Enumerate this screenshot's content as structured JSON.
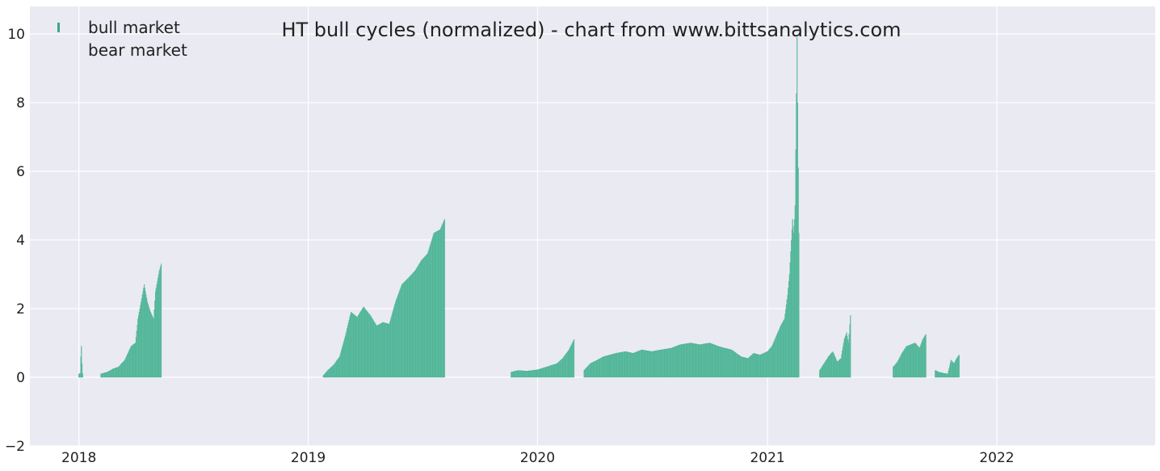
{
  "colors": {
    "background": "#eaeaf2",
    "grid": "#ffffff",
    "bull": "#66c2a5",
    "bull_edge": "#3aa88a",
    "bear": "#fc8d62"
  },
  "chart_data": {
    "type": "bar",
    "title": "HT bull cycles (normalized)  - chart from www.bittsanalytics.com",
    "xlabel": "",
    "ylabel": "",
    "xlim": [
      "2017-10-15",
      "2022-09-10"
    ],
    "ylim": [
      -2,
      10.8
    ],
    "grid": true,
    "legend_position": "top-left",
    "x_tick_labels": [
      "2018",
      "2019",
      "2020",
      "2021",
      "2022"
    ],
    "x_tick_dates": [
      "2018-01-01",
      "2019-01-01",
      "2020-01-01",
      "2021-01-01",
      "2022-01-01"
    ],
    "y_tick_labels": [
      "−2",
      "0",
      "2",
      "4",
      "6",
      "8",
      "10"
    ],
    "y_tick_values": [
      -2,
      0,
      2,
      4,
      6,
      8,
      10
    ],
    "series": [
      {
        "name": "bull market",
        "segments": [
          {
            "dates": [
              "2018-01-01",
              "2018-01-02",
              "2018-01-03",
              "2018-01-04",
              "2018-01-05",
              "2018-01-06",
              "2018-01-07"
            ],
            "values": [
              0.1,
              0.1,
              0.12,
              0.6,
              0.9,
              0.4,
              0.1
            ]
          },
          {
            "dates": [
              "2018-02-05",
              "2018-02-15",
              "2018-02-25",
              "2018-03-05",
              "2018-03-15",
              "2018-03-25",
              "2018-04-01",
              "2018-04-05",
              "2018-04-10",
              "2018-04-15",
              "2018-04-20",
              "2018-04-25",
              "2018-04-30",
              "2018-05-03",
              "2018-05-06",
              "2018-05-09",
              "2018-05-12"
            ],
            "values": [
              0.1,
              0.15,
              0.25,
              0.3,
              0.5,
              0.9,
              1.0,
              1.7,
              2.2,
              2.7,
              2.2,
              1.9,
              1.7,
              2.5,
              2.8,
              3.1,
              3.3
            ]
          },
          {
            "dates": [
              "2019-01-25",
              "2019-02-01",
              "2019-02-10",
              "2019-02-20",
              "2019-03-01",
              "2019-03-10",
              "2019-03-20",
              "2019-03-30",
              "2019-04-10",
              "2019-04-20",
              "2019-04-30",
              "2019-05-10",
              "2019-05-20",
              "2019-05-30",
              "2019-06-10",
              "2019-06-20",
              "2019-06-30",
              "2019-07-10",
              "2019-07-20",
              "2019-07-30",
              "2019-08-06"
            ],
            "values": [
              0.05,
              0.2,
              0.35,
              0.6,
              1.2,
              1.9,
              1.75,
              2.05,
              1.8,
              1.5,
              1.6,
              1.55,
              2.2,
              2.7,
              2.9,
              3.1,
              3.4,
              3.6,
              4.2,
              4.3,
              4.6
            ]
          },
          {
            "dates": [
              "2019-11-20",
              "2019-12-01",
              "2019-12-15",
              "2020-01-01",
              "2020-01-15",
              "2020-02-01",
              "2020-02-10",
              "2020-02-20",
              "2020-02-28"
            ],
            "values": [
              0.15,
              0.2,
              0.18,
              0.22,
              0.3,
              0.4,
              0.55,
              0.8,
              1.1
            ]
          },
          {
            "dates": [
              "2020-03-15",
              "2020-03-25",
              "2020-04-05",
              "2020-04-15",
              "2020-04-25",
              "2020-05-05",
              "2020-05-20",
              "2020-06-01",
              "2020-06-15",
              "2020-07-01",
              "2020-07-15",
              "2020-08-01",
              "2020-08-15",
              "2020-09-01",
              "2020-09-15",
              "2020-10-01",
              "2020-10-15",
              "2020-10-25",
              "2020-11-05",
              "2020-11-20",
              "2020-12-01",
              "2020-12-10",
              "2020-12-20",
              "2021-01-01",
              "2021-01-08",
              "2021-01-15",
              "2021-01-22",
              "2021-01-28",
              "2021-02-02",
              "2021-02-05",
              "2021-02-08",
              "2021-02-10",
              "2021-02-12",
              "2021-02-14",
              "2021-02-17",
              "2021-02-20"
            ],
            "values": [
              0.2,
              0.4,
              0.5,
              0.6,
              0.65,
              0.7,
              0.75,
              0.7,
              0.8,
              0.75,
              0.8,
              0.85,
              0.95,
              1.0,
              0.95,
              1.0,
              0.9,
              0.85,
              0.8,
              0.6,
              0.55,
              0.7,
              0.65,
              0.75,
              0.9,
              1.2,
              1.5,
              1.7,
              2.4,
              3.0,
              4.0,
              4.6,
              4.2,
              5.0,
              9.9,
              4.2
            ]
          },
          {
            "dates": [
              "2021-03-25",
              "2021-04-01",
              "2021-04-08",
              "2021-04-15",
              "2021-04-22",
              "2021-04-28",
              "2021-05-03",
              "2021-05-07",
              "2021-05-10",
              "2021-05-13"
            ],
            "values": [
              0.2,
              0.4,
              0.6,
              0.75,
              0.45,
              0.55,
              1.1,
              1.3,
              1.0,
              1.8
            ]
          },
          {
            "dates": [
              "2021-07-20",
              "2021-07-27",
              "2021-08-03",
              "2021-08-10",
              "2021-08-17",
              "2021-08-24",
              "2021-08-31",
              "2021-09-05",
              "2021-09-10"
            ],
            "values": [
              0.3,
              0.45,
              0.7,
              0.9,
              0.95,
              1.0,
              0.85,
              1.1,
              1.25
            ]
          },
          {
            "dates": [
              "2021-09-25",
              "2021-10-01",
              "2021-10-08",
              "2021-10-15",
              "2021-10-20",
              "2021-10-25",
              "2021-10-29",
              "2021-11-02"
            ],
            "values": [
              0.2,
              0.15,
              0.12,
              0.1,
              0.5,
              0.4,
              0.55,
              0.65
            ]
          }
        ]
      },
      {
        "name": "bear market",
        "segments": []
      }
    ]
  }
}
